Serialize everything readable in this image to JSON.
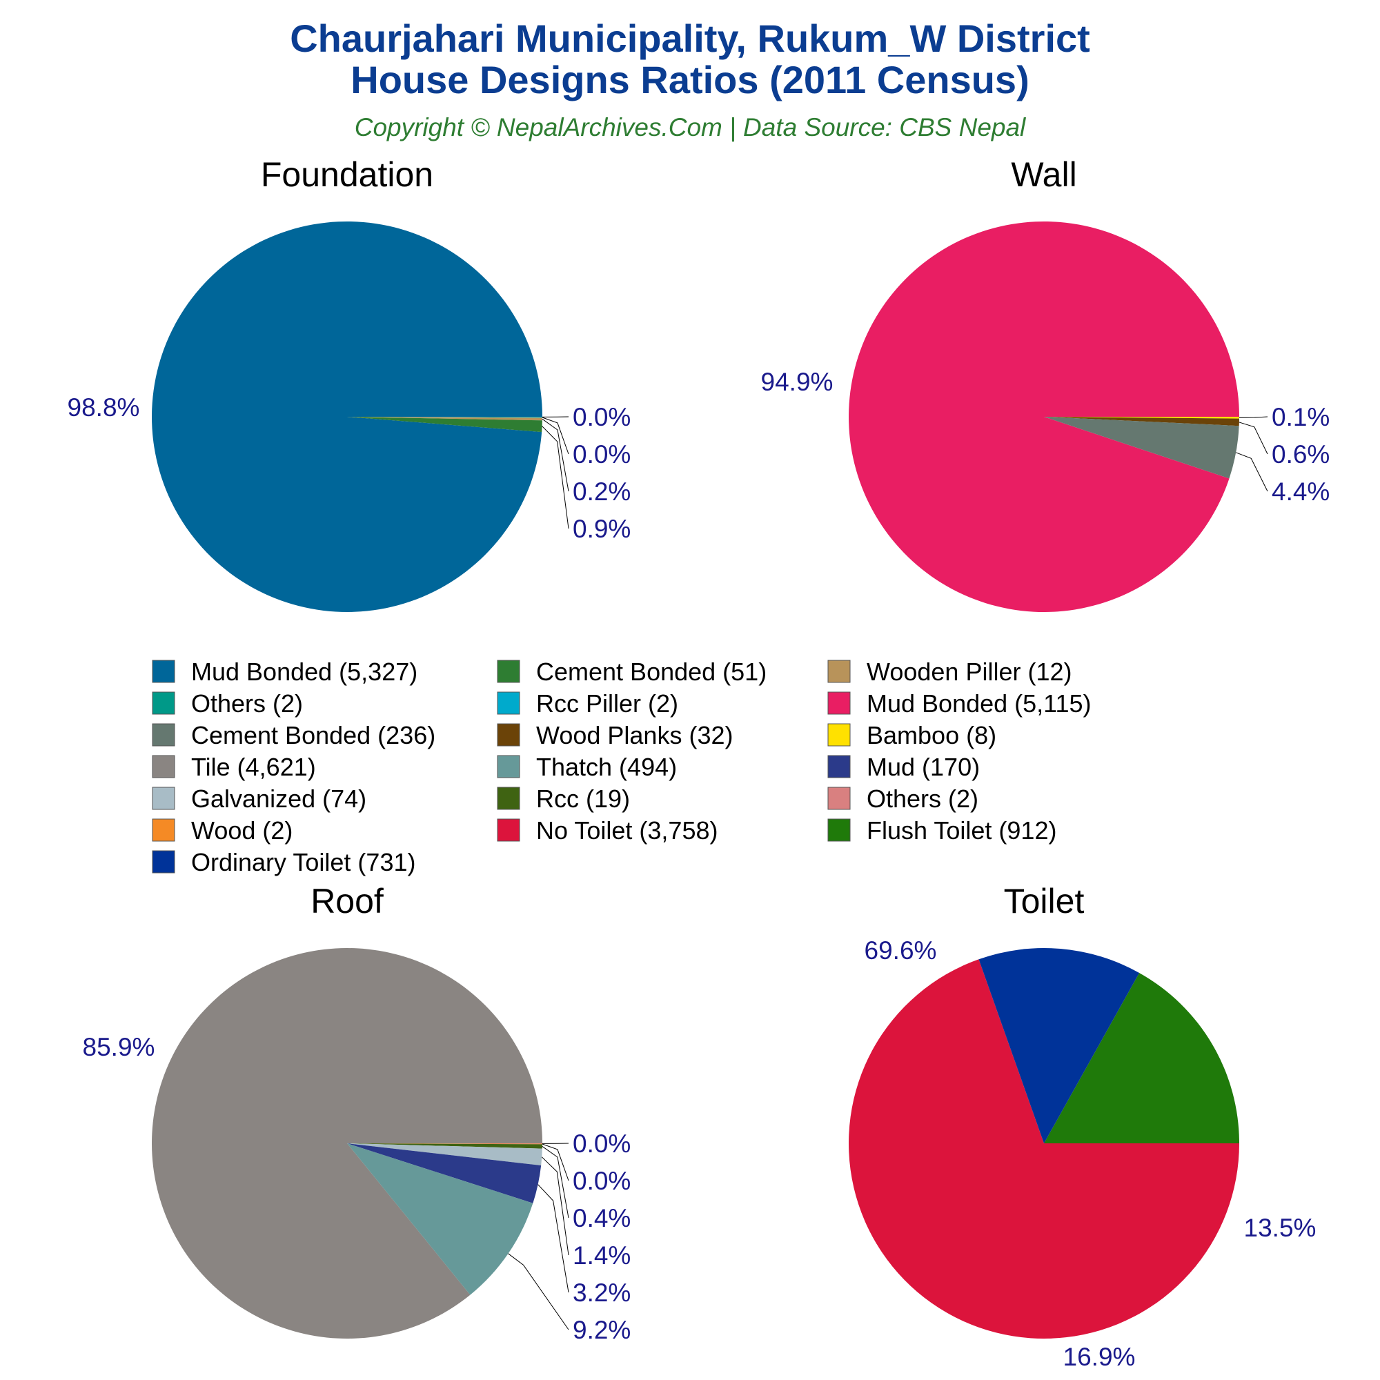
{
  "header": {
    "title_line1": "Chaurjahari Municipality, Rukum_W District",
    "title_line2": "House Designs Ratios (2011 Census)",
    "subtitle": "Copyright © NepalArchives.Com | Data Source: CBS Nepal"
  },
  "chart_data": [
    {
      "type": "pie",
      "title": "Foundation",
      "slices": [
        {
          "label": "Mud Bonded",
          "value": 5327,
          "pct": "98.8%",
          "color": "#006699"
        },
        {
          "label": "Others",
          "value": 2,
          "pct": "0.0%",
          "color": "#009988"
        },
        {
          "label": "Rcc Piller",
          "value": 2,
          "pct": "0.0%",
          "color": "#00aacc"
        },
        {
          "label": "Wooden Piller",
          "value": 12,
          "pct": "0.2%",
          "color": "#b8935a"
        },
        {
          "label": "Cement Bonded",
          "value": 51,
          "pct": "0.9%",
          "color": "#2e7d32"
        }
      ]
    },
    {
      "type": "pie",
      "title": "Wall",
      "slices": [
        {
          "label": "Mud Bonded",
          "value": 5115,
          "pct": "94.9%",
          "color": "#e91e63"
        },
        {
          "label": "Bamboo",
          "value": 8,
          "pct": "0.1%",
          "color": "#ffe100"
        },
        {
          "label": "Wood Planks",
          "value": 32,
          "pct": "0.6%",
          "color": "#6b4308"
        },
        {
          "label": "Cement Bonded",
          "value": 236,
          "pct": "4.4%",
          "color": "#657870"
        }
      ]
    },
    {
      "type": "pie",
      "title": "Roof",
      "slices": [
        {
          "label": "Tile",
          "value": 4621,
          "pct": "85.9%",
          "color": "#8a8582"
        },
        {
          "label": "Others",
          "value": 2,
          "pct": "0.0%",
          "color": "#d98080"
        },
        {
          "label": "Wood",
          "value": 2,
          "pct": "0.0%",
          "color": "#f58a25"
        },
        {
          "label": "Rcc",
          "value": 19,
          "pct": "0.4%",
          "color": "#3f6312"
        },
        {
          "label": "Galvanized",
          "value": 74,
          "pct": "1.4%",
          "color": "#a8bcc6"
        },
        {
          "label": "Mud",
          "value": 170,
          "pct": "3.2%",
          "color": "#2b3a8a"
        },
        {
          "label": "Thatch",
          "value": 494,
          "pct": "9.2%",
          "color": "#669999"
        }
      ]
    },
    {
      "type": "pie",
      "title": "Toilet",
      "slices": [
        {
          "label": "No Toilet",
          "value": 3758,
          "pct": "69.6%",
          "color": "#dc143c"
        },
        {
          "label": "Flush Toilet",
          "value": 912,
          "pct": "16.9%",
          "color": "#1f7a0a"
        },
        {
          "label": "Ordinary Toilet",
          "value": 731,
          "pct": "13.5%",
          "color": "#003399"
        }
      ]
    }
  ],
  "legend": [
    {
      "label": "Mud Bonded (5,327)",
      "color": "#006699"
    },
    {
      "label": "Cement Bonded (51)",
      "color": "#2e7d32"
    },
    {
      "label": "Wooden Piller (12)",
      "color": "#b8935a"
    },
    {
      "label": "Others (2)",
      "color": "#009988"
    },
    {
      "label": "Rcc Piller (2)",
      "color": "#00aacc"
    },
    {
      "label": "Mud Bonded (5,115)",
      "color": "#e91e63"
    },
    {
      "label": "Cement Bonded (236)",
      "color": "#657870"
    },
    {
      "label": "Wood Planks (32)",
      "color": "#6b4308"
    },
    {
      "label": "Bamboo (8)",
      "color": "#ffe100"
    },
    {
      "label": "Tile (4,621)",
      "color": "#8a8582"
    },
    {
      "label": "Thatch (494)",
      "color": "#669999"
    },
    {
      "label": "Mud (170)",
      "color": "#2b3a8a"
    },
    {
      "label": "Galvanized (74)",
      "color": "#a8bcc6"
    },
    {
      "label": "Rcc (19)",
      "color": "#3f6312"
    },
    {
      "label": "Others (2)",
      "color": "#d98080"
    },
    {
      "label": "Wood (2)",
      "color": "#f58a25"
    },
    {
      "label": "No Toilet (3,758)",
      "color": "#dc143c"
    },
    {
      "label": "Flush Toilet (912)",
      "color": "#1f7a0a"
    },
    {
      "label": "Ordinary Toilet (731)",
      "color": "#003399"
    }
  ]
}
